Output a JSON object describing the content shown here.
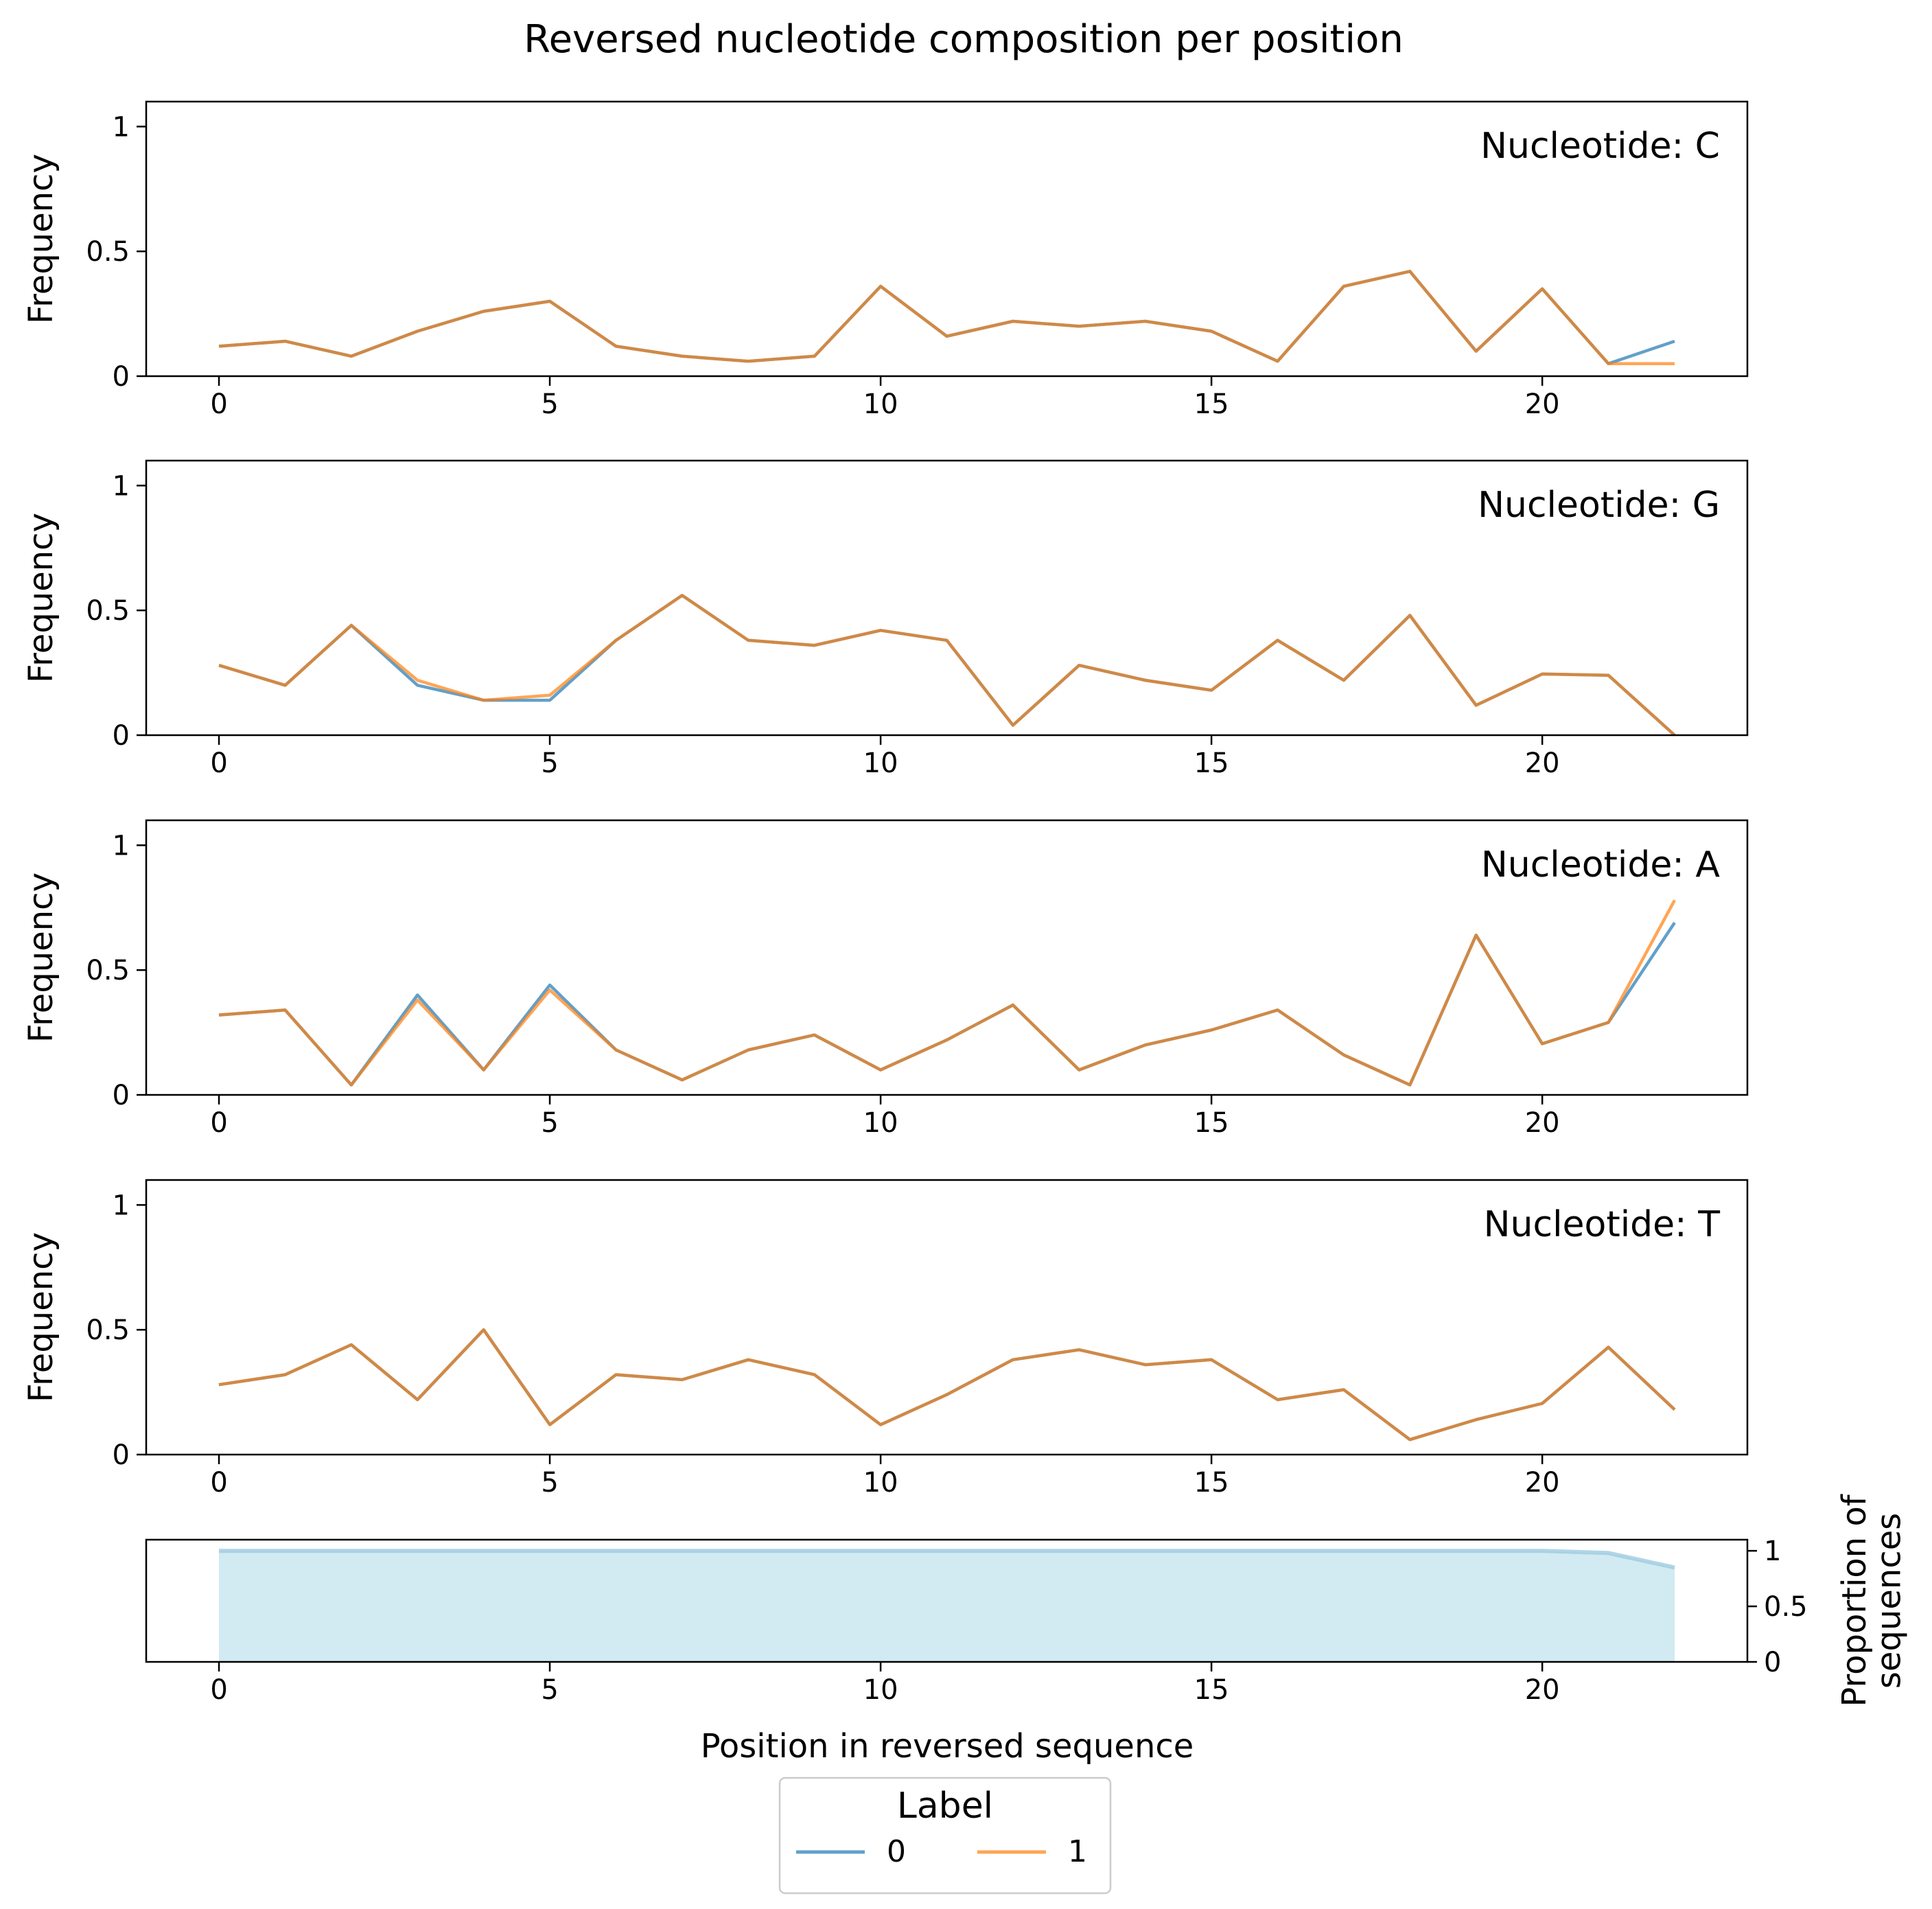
{
  "chart_data": {
    "type": "line",
    "title": "Reversed nucleotide composition per position",
    "x": [
      0,
      1,
      2,
      3,
      4,
      5,
      6,
      7,
      8,
      9,
      10,
      11,
      12,
      13,
      14,
      15,
      16,
      17,
      18,
      19,
      20,
      21,
      22
    ],
    "xticks": [
      0,
      5,
      10,
      15,
      20
    ],
    "xlim": [
      -1.1,
      23.1
    ],
    "ylabel": "Frequency",
    "ylim": [
      0,
      1.1
    ],
    "yticks": [
      "0",
      "0.5",
      "1"
    ],
    "xlabel": "Position in reversed sequence",
    "colors": {
      "0": "#1f77b4",
      "1": "#ff7f0e",
      "coverage_line": "#9ecae1",
      "coverage_fill": "#add8e6"
    },
    "panels": [
      {
        "label": "Nucleotide: C",
        "series": [
          {
            "name": "0",
            "values": [
              0.12,
              0.14,
              0.08,
              0.18,
              0.26,
              0.3,
              0.12,
              0.08,
              0.06,
              0.08,
              0.36,
              0.16,
              0.22,
              0.2,
              0.22,
              0.18,
              0.06,
              0.36,
              0.42,
              0.1,
              0.35,
              0.05,
              0.14
            ]
          },
          {
            "name": "1",
            "values": [
              0.12,
              0.14,
              0.08,
              0.18,
              0.26,
              0.3,
              0.12,
              0.08,
              0.06,
              0.08,
              0.36,
              0.16,
              0.22,
              0.2,
              0.22,
              0.18,
              0.06,
              0.36,
              0.42,
              0.1,
              0.35,
              0.05,
              0.05
            ]
          }
        ]
      },
      {
        "label": "Nucleotide: G",
        "series": [
          {
            "name": "0",
            "values": [
              0.28,
              0.2,
              0.44,
              0.2,
              0.14,
              0.14,
              0.38,
              0.56,
              0.38,
              0.36,
              0.42,
              0.38,
              0.04,
              0.28,
              0.22,
              0.18,
              0.38,
              0.22,
              0.48,
              0.12,
              0.245,
              0.24,
              0.0
            ]
          },
          {
            "name": "1",
            "values": [
              0.28,
              0.2,
              0.44,
              0.22,
              0.14,
              0.16,
              0.38,
              0.56,
              0.38,
              0.36,
              0.42,
              0.38,
              0.04,
              0.28,
              0.22,
              0.18,
              0.38,
              0.22,
              0.48,
              0.12,
              0.245,
              0.24,
              0.0
            ]
          }
        ]
      },
      {
        "label": "Nucleotide: A",
        "series": [
          {
            "name": "0",
            "values": [
              0.32,
              0.34,
              0.04,
              0.4,
              0.1,
              0.44,
              0.18,
              0.06,
              0.18,
              0.24,
              0.1,
              0.22,
              0.36,
              0.1,
              0.2,
              0.26,
              0.34,
              0.16,
              0.04,
              0.64,
              0.205,
              0.29,
              0.69
            ]
          },
          {
            "name": "1",
            "values": [
              0.32,
              0.34,
              0.04,
              0.38,
              0.1,
              0.42,
              0.18,
              0.06,
              0.18,
              0.24,
              0.1,
              0.22,
              0.36,
              0.1,
              0.2,
              0.26,
              0.34,
              0.16,
              0.04,
              0.64,
              0.205,
              0.29,
              0.78
            ]
          }
        ]
      },
      {
        "label": "Nucleotide: T",
        "series": [
          {
            "name": "0",
            "values": [
              0.28,
              0.32,
              0.44,
              0.22,
              0.5,
              0.12,
              0.32,
              0.3,
              0.38,
              0.32,
              0.12,
              0.24,
              0.38,
              0.42,
              0.36,
              0.38,
              0.22,
              0.26,
              0.06,
              0.14,
              0.205,
              0.43,
              0.18
            ]
          },
          {
            "name": "1",
            "values": [
              0.28,
              0.32,
              0.44,
              0.22,
              0.5,
              0.12,
              0.32,
              0.3,
              0.38,
              0.32,
              0.12,
              0.24,
              0.38,
              0.42,
              0.36,
              0.38,
              0.22,
              0.26,
              0.06,
              0.14,
              0.205,
              0.43,
              0.18
            ]
          }
        ]
      }
    ],
    "coverage": {
      "ylabel_lines": [
        "Proportion of",
        "sequences"
      ],
      "ylim": [
        0,
        1.1
      ],
      "yticks": [
        "0",
        "0.5",
        "1"
      ],
      "values": [
        1,
        1,
        1,
        1,
        1,
        1,
        1,
        1,
        1,
        1,
        1,
        1,
        1,
        1,
        1,
        1,
        1,
        1,
        1,
        1,
        1,
        0.98,
        0.85
      ]
    },
    "legend": {
      "title": "Label",
      "entries": [
        "0",
        "1"
      ],
      "placement": "bottom-center"
    }
  }
}
